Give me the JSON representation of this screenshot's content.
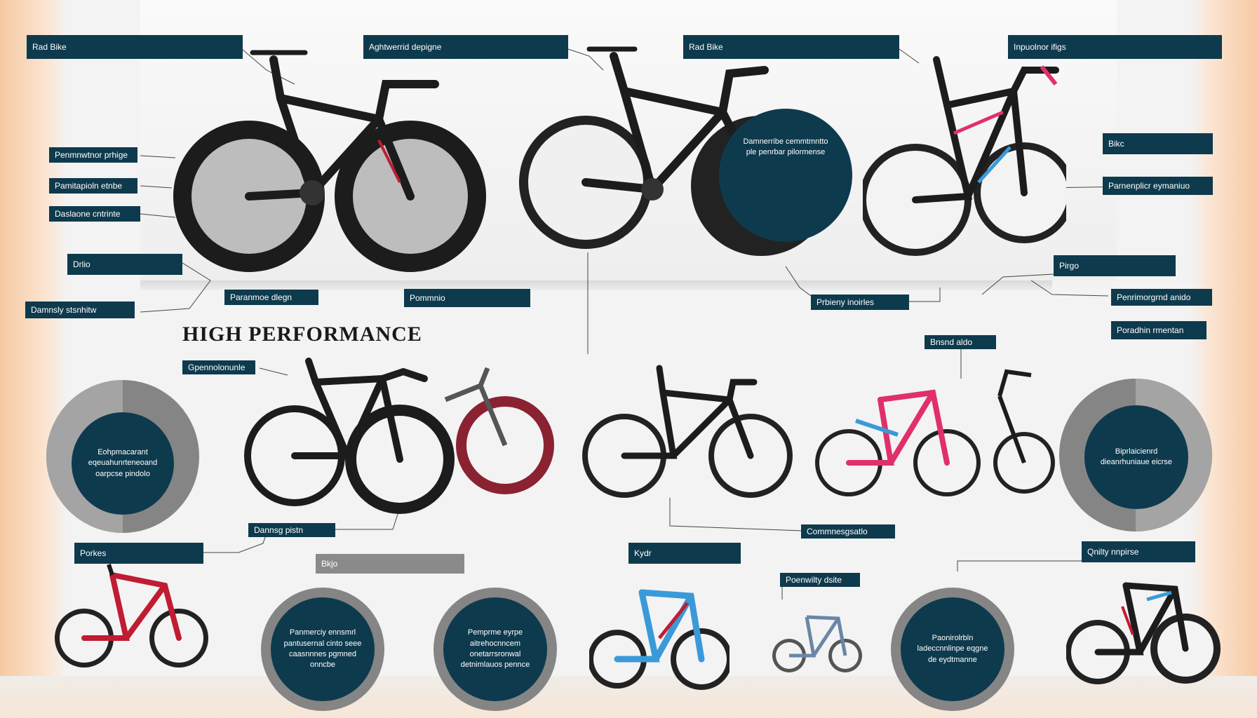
{
  "title": "HIGH PERFORMANCE",
  "labels": {
    "l1": "Rad Bike",
    "l2": "Aghtwerrid depigne",
    "l3": "Rad Bike",
    "l4": "Inpuolnor ifigs",
    "l5": "Penmnwtnor prhige",
    "l6": "Pamitapioln etnbe",
    "l7": "Daslaone cntrinte",
    "l8": "Drlio",
    "l9": "Damnsly stsnhitw",
    "l10": "Paranmoe dlegn",
    "l11": "Pommnio",
    "l12": "Bikc",
    "l13": "Parnenplicr eymaniuo",
    "l14": "Prbieny inoirles",
    "l15": "Pirgo",
    "l16": "Penrimorgrnd anido",
    "l17": "Poradhin rmentan",
    "l18": "Bnsnd aldo",
    "l19": "Gpennolonunle",
    "l20": "Dannsg pistn",
    "l21": "Commnesgsatlo",
    "l22": "Porkes",
    "l23": "Bkjo",
    "l24": "Kydr",
    "l25": "Poenwilty dsite",
    "l26": "Qnilty nnpirse"
  },
  "circles": {
    "c1": "Damnerribe cemmtmntto ple penrbar pilormense",
    "c2": "Eohpmacarant eqeuahunrteneoand oarpcse pindolo",
    "c3": "Biprlaicienrd dieanrhuniaue eicrse",
    "c4": "Panmerciy ennsmrl pantusernal cinto seee caasnnnes pgmned onncbe",
    "c5": "Pemprme eyrpe aitrehocnncem onetarrsronwal detnimlauos pennce",
    "c6": "Paonirolrbln ladeccnnlinpe eqgne de eydtmanne"
  },
  "colors": {
    "label_bg": "#0e3a4d",
    "label_gray": "#8a8a8a",
    "ring": "#858585",
    "accent_pink": "#e0306a",
    "accent_blue": "#3a9ad9",
    "accent_red": "#c01c32",
    "frame_black": "#1c1c1c"
  },
  "icons": [
    "road-bike-icon"
  ]
}
